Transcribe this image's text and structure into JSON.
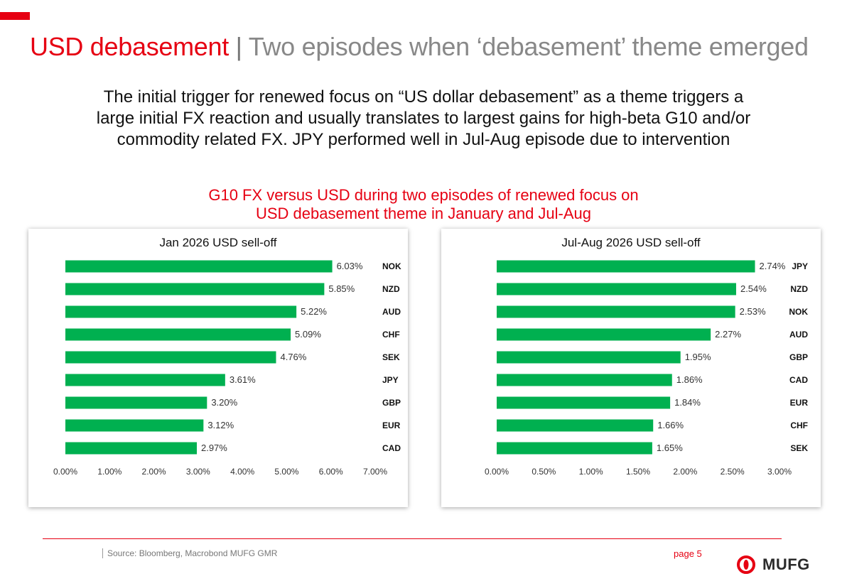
{
  "header": {
    "title_main": "USD debasement",
    "title_sep": " | ",
    "title_sub": "Two episodes when ‘debasement’ theme emerged"
  },
  "intro": "The initial trigger for renewed focus on “US dollar debasement” as a theme triggers a large initial FX reaction and usually translates to largest gains for high-beta G10 and/or commodity related FX. JPY performed well in Jul-Aug episode due to intervention",
  "subtitle_line1": "G10 FX versus USD during two episodes of renewed focus on",
  "subtitle_line2": "USD debasement theme in January and Jul-Aug",
  "colors": {
    "accent": "#e60012",
    "bar": "#00b050"
  },
  "chart_data": [
    {
      "type": "bar",
      "orientation": "horizontal",
      "title": "Jan 2026 USD sell-off",
      "categories": [
        "NOK",
        "NZD",
        "AUD",
        "CHF",
        "SEK",
        "JPY",
        "GBP",
        "EUR",
        "CAD"
      ],
      "values": [
        6.03,
        5.85,
        5.22,
        5.09,
        4.76,
        3.61,
        3.2,
        3.12,
        2.97
      ],
      "value_labels": [
        "6.03%",
        "5.85%",
        "5.22%",
        "5.09%",
        "4.76%",
        "3.61%",
        "3.20%",
        "3.12%",
        "2.97%"
      ],
      "xlim": [
        0,
        7
      ],
      "xticks": [
        0,
        1,
        2,
        3,
        4,
        5,
        6,
        7
      ],
      "xtick_labels": [
        "0.00%",
        "1.00%",
        "2.00%",
        "3.00%",
        "4.00%",
        "5.00%",
        "6.00%",
        "7.00%"
      ],
      "grid": false
    },
    {
      "type": "bar",
      "orientation": "horizontal",
      "title": "Jul-Aug 2026 USD sell-off",
      "categories": [
        "JPY",
        "NZD",
        "NOK",
        "AUD",
        "GBP",
        "CAD",
        "EUR",
        "CHF",
        "SEK"
      ],
      "values": [
        2.74,
        2.54,
        2.53,
        2.27,
        1.95,
        1.86,
        1.84,
        1.66,
        1.65
      ],
      "value_labels": [
        "2.74%",
        "2.54%",
        "2.53%",
        "2.27%",
        "1.95%",
        "1.86%",
        "1.84%",
        "1.66%",
        "1.65%"
      ],
      "xlim": [
        0,
        3
      ],
      "xticks": [
        0,
        0.5,
        1,
        1.5,
        2,
        2.5,
        3
      ],
      "xtick_labels": [
        "0.00%",
        "0.50%",
        "1.00%",
        "1.50%",
        "2.00%",
        "2.50%",
        "3.00%"
      ],
      "grid": false
    }
  ],
  "footer": {
    "source": "Source: Bloomberg, Macrobond MUFG GMR",
    "page": "page 5",
    "logo_text": "MUFG"
  }
}
